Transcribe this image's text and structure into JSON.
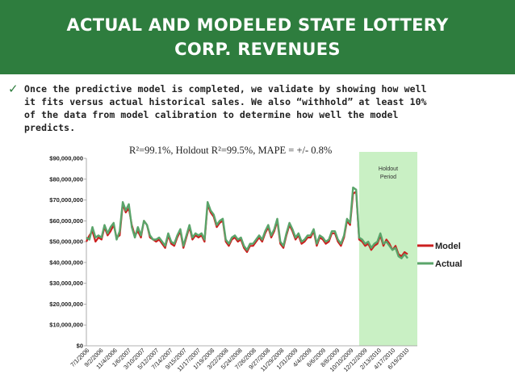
{
  "header": {
    "title_line1": "ACTUAL AND MODELED STATE LOTTERY",
    "title_line2": "CORP. REVENUES"
  },
  "bullet": {
    "icon": "check-icon",
    "text": "Once the predictive model is completed, we validate by showing how well it fits versus actual historical sales.  We also “withhold” at least 10% of the data from model calibration to determine how well the model predicts."
  },
  "colors": {
    "banner": "#2e7d3e",
    "model": "#cc1f1f",
    "actual": "#5aa46a",
    "holdout": "#c9f0c4"
  },
  "chart_data": {
    "type": "line",
    "annotation": "R²=99.1%, Holdout R²=99.5%, MAPE = +/- 0.8%",
    "holdout_label_line1": "Holdout",
    "holdout_label_line2": "Period",
    "holdout_start_index": 90,
    "ylim": [
      0,
      90000000
    ],
    "yticks": [
      0,
      10000000,
      20000000,
      30000000,
      40000000,
      50000000,
      60000000,
      70000000,
      80000000,
      90000000
    ],
    "ytick_labels": [
      "$0",
      "$10,000,000",
      "$20,000,000",
      "$30,000,000",
      "$40,000,000",
      "$50,000,000",
      "$60,000,000",
      "$70,000,000",
      "$80,000,000",
      "$90,000,000"
    ],
    "xtick_labels": [
      "7/1/2006",
      "9/2/2006",
      "11/4/2006",
      "1/6/2007",
      "3/10/2007",
      "5/12/2007",
      "7/14/2007",
      "9/15/2007",
      "11/17/2007",
      "1/19/2008",
      "3/22/2008",
      "5/24/2008",
      "7/26/2008",
      "9/27/2008",
      "11/29/2008",
      "1/31/2009",
      "4/4/2009",
      "6/6/2009",
      "8/8/2009",
      "10/10/2009",
      "12/12/2009",
      "2/13/2010",
      "4/17/2010",
      "6/19/2010"
    ],
    "series": [
      {
        "name": "Model",
        "values": [
          50,
          53,
          55,
          50,
          52,
          51,
          57,
          53,
          55,
          58,
          52,
          53,
          68,
          64,
          66,
          58,
          53,
          55,
          52,
          60,
          58,
          52,
          51,
          50,
          51,
          49,
          47,
          53,
          49,
          48,
          52,
          55,
          47,
          52,
          57,
          51,
          53,
          52,
          53,
          50,
          68,
          64,
          62,
          57,
          59,
          60,
          50,
          48,
          51,
          52,
          50,
          51,
          47,
          45,
          48,
          48,
          50,
          52,
          50,
          54,
          57,
          52,
          55,
          60,
          49,
          47,
          53,
          58,
          55,
          51,
          53,
          49,
          50,
          52,
          52,
          55,
          48,
          52,
          51,
          49,
          50,
          54,
          54,
          50,
          48,
          52,
          60,
          58,
          73,
          74,
          51,
          50,
          48,
          49,
          46,
          48,
          49,
          53,
          48,
          51,
          49,
          46,
          48,
          44,
          43,
          45,
          44
        ],
        "color": "#cc1f1f"
      },
      {
        "name": "Actual",
        "values": [
          52,
          51,
          57,
          52,
          53,
          52,
          58,
          54,
          57,
          59,
          51,
          55,
          69,
          65,
          68,
          57,
          52,
          57,
          53,
          60,
          58,
          53,
          51,
          51,
          52,
          50,
          48,
          54,
          50,
          49,
          53,
          56,
          48,
          53,
          58,
          52,
          54,
          53,
          54,
          51,
          69,
          65,
          63,
          58,
          60,
          61,
          51,
          49,
          52,
          53,
          51,
          52,
          48,
          46,
          49,
          49,
          51,
          53,
          51,
          55,
          58,
          53,
          56,
          61,
          50,
          48,
          54,
          59,
          56,
          52,
          54,
          50,
          51,
          53,
          53,
          56,
          49,
          53,
          52,
          50,
          51,
          55,
          55,
          51,
          49,
          53,
          61,
          59,
          76,
          75,
          52,
          51,
          49,
          50,
          47,
          49,
          50,
          54,
          49,
          50,
          48,
          46,
          47,
          43,
          42,
          44,
          42
        ],
        "color": "#5aa46a"
      }
    ]
  }
}
